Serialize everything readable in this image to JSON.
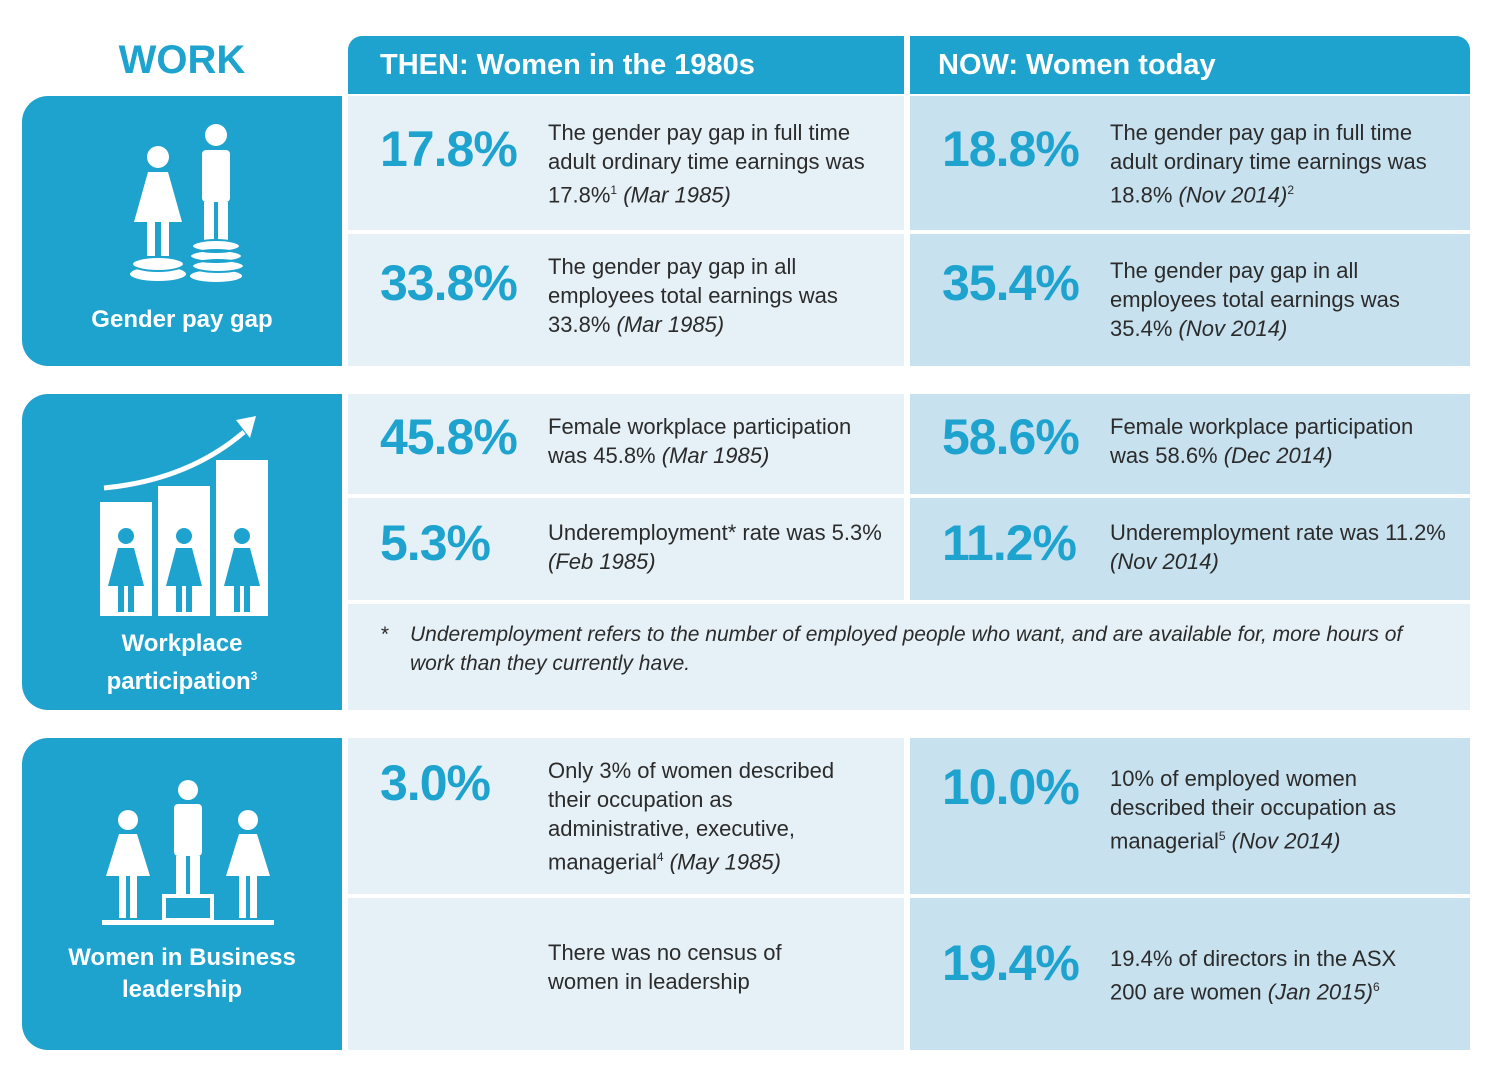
{
  "title": "WORK",
  "headers": {
    "then": "THEN: Women in the 1980s",
    "now": "NOW: Women today"
  },
  "sections": {
    "pay_gap": {
      "label": "Gender pay gap",
      "icon": "pay-gap-people-coins-icon",
      "rows": [
        {
          "then": {
            "pct": "17.8%",
            "text": "The gender pay gap in full time adult ordinary time earnings was 17.8%",
            "sup": "1",
            "date": "(Mar 1985)"
          },
          "now": {
            "pct": "18.8%",
            "text": "The gender pay gap in full time adult ordinary time earnings was 18.8%",
            "date": "(Nov 2014)",
            "sup": "2"
          }
        },
        {
          "then": {
            "pct": "33.8%",
            "text": "The gender pay gap in all employees total earnings was 33.8%",
            "date": "(Mar 1985)"
          },
          "now": {
            "pct": "35.4%",
            "text": "The gender pay gap in all employees total earnings was 35.4%",
            "date": "(Nov 2014)"
          }
        }
      ]
    },
    "participation": {
      "label_line1": "Workplace",
      "label_line2": "participation",
      "label_sup": "3",
      "icon": "rising-bar-chart-women-icon",
      "rows": [
        {
          "then": {
            "pct": "45.8%",
            "text": "Female workplace participation was 45.8%",
            "date": "(Mar 1985)"
          },
          "now": {
            "pct": "58.6%",
            "text": "Female workplace participation was 58.6%",
            "date": "(Dec 2014)"
          }
        },
        {
          "then": {
            "pct": "5.3%",
            "text": "Underemployment* rate was 5.3%",
            "date": "(Feb 1985)"
          },
          "now": {
            "pct": "11.2%",
            "text": "Underemployment rate was 11.2%",
            "date": "(Nov 2014)"
          }
        }
      ],
      "footnote_star": "*",
      "footnote": "Underemployment refers to the number of employed people who want, and are available for, more hours of work than they currently have."
    },
    "leadership": {
      "label_line1": "Women in Business",
      "label_line2": "leadership",
      "icon": "podium-people-icon",
      "rows": [
        {
          "then": {
            "pct": "3.0%",
            "text": "Only 3% of women described their occupation as administrative, executive, managerial",
            "sup": "4",
            "date": "(May 1985)"
          },
          "now": {
            "pct": "10.0%",
            "text": "10% of employed women described their occupation as managerial",
            "sup": "5",
            "date": "(Nov 2014)"
          }
        },
        {
          "then": {
            "text": "There was no census of women in leadership"
          },
          "now": {
            "pct": "19.4%",
            "text": "19.4% of directors in the ASX 200 are women",
            "date": "(Jan 2015)",
            "sup": "6"
          }
        }
      ]
    }
  },
  "colors": {
    "accent": "#1ea3cf",
    "then_bg": "#e6f1f7",
    "now_bg": "#c7e1ef"
  }
}
